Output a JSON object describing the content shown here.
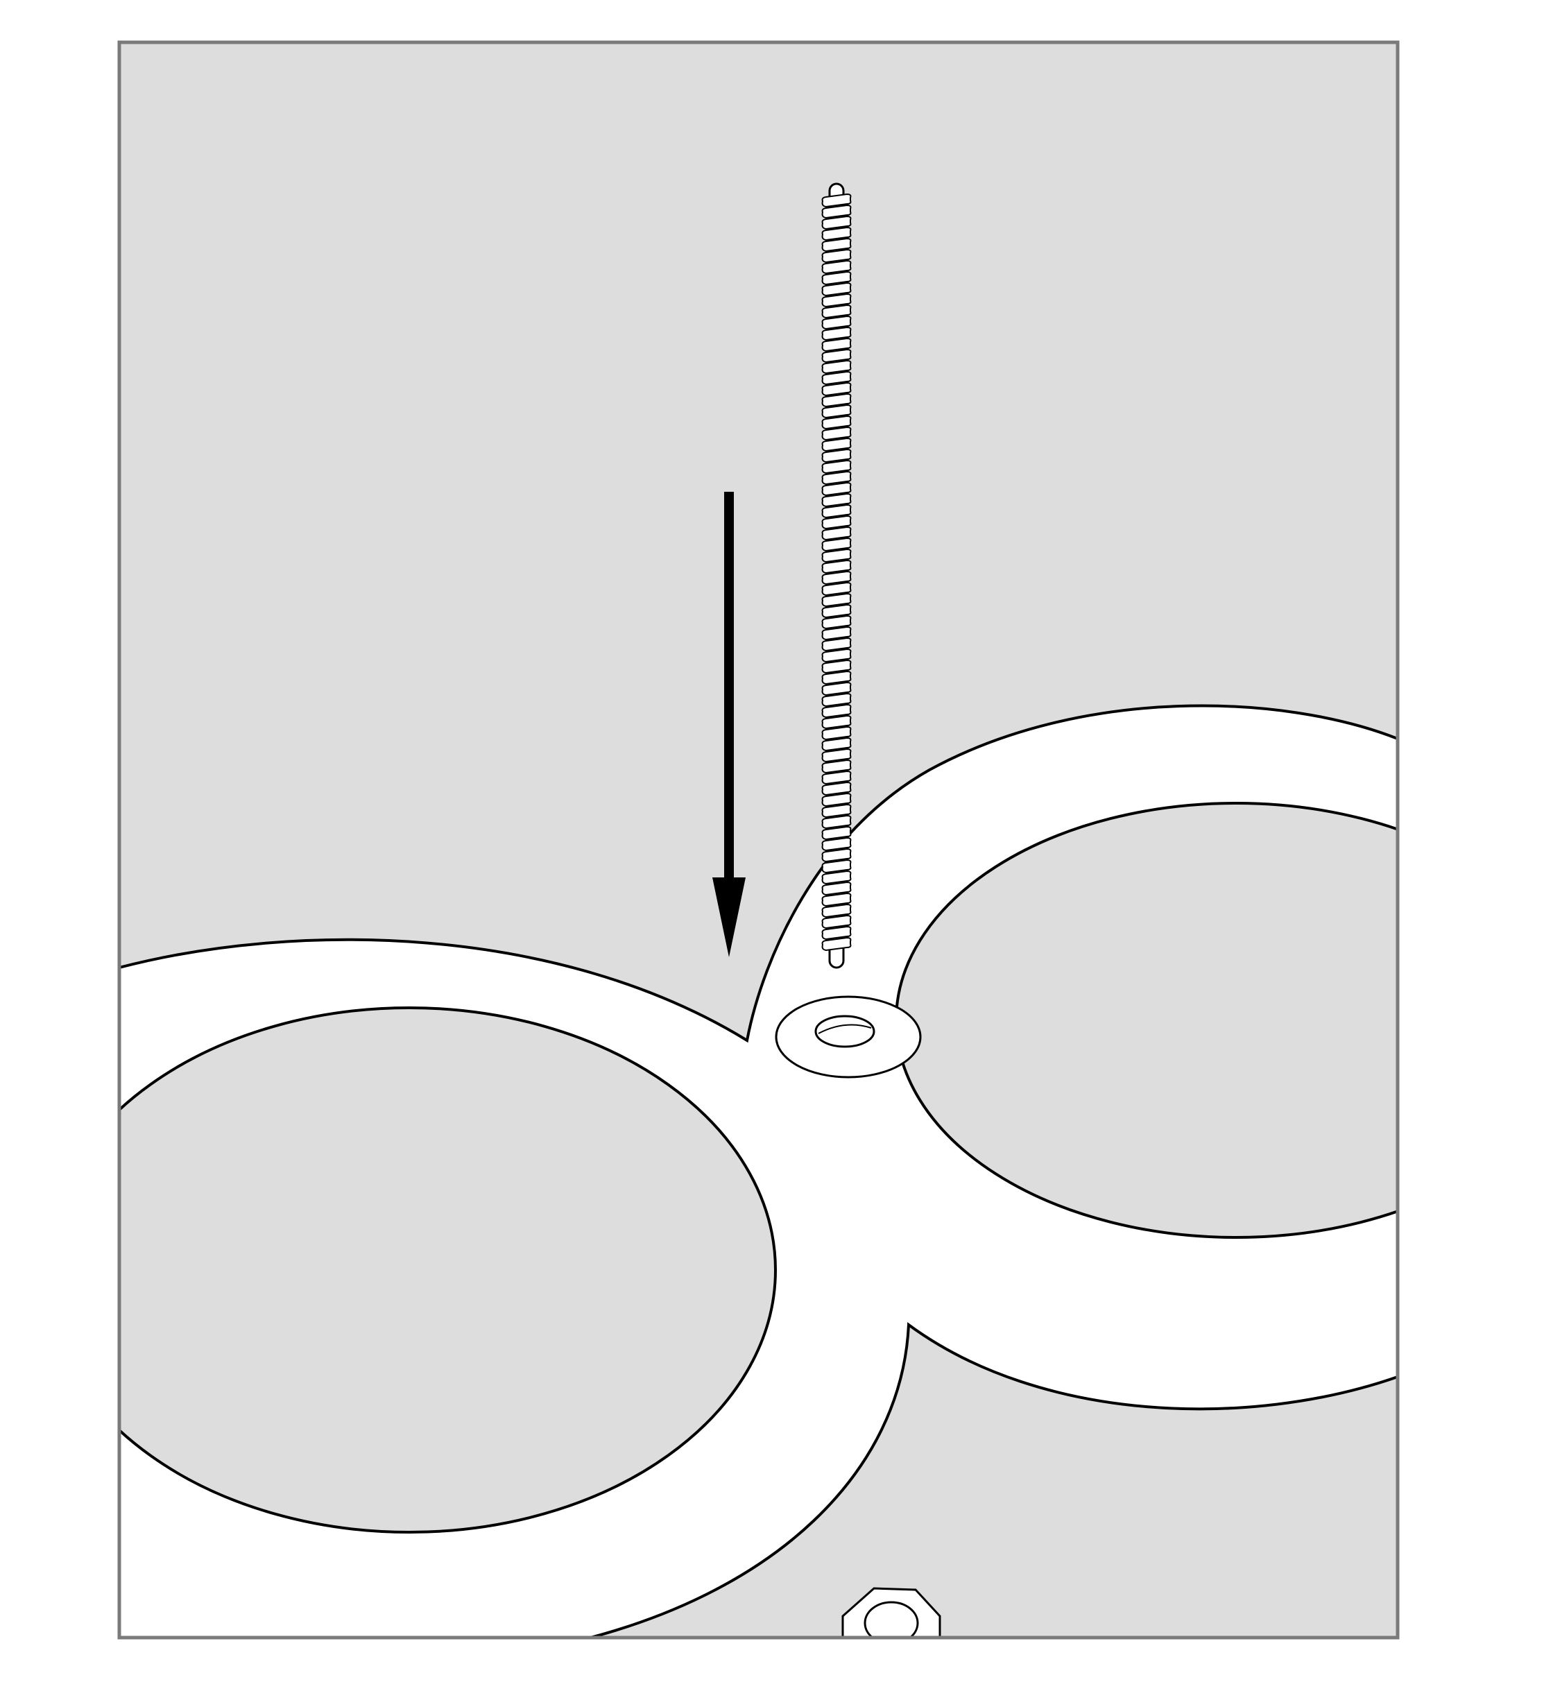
{
  "figure": {
    "description_role": "assembly-illustration",
    "colors": {
      "panel_background": "#dcdddc",
      "panel_border": "#7a7a7a",
      "part_fill": "#ffffff",
      "outline": "#000000",
      "arrow": "#000000"
    },
    "parts": [
      {
        "id": "threaded-rod",
        "icon": "threaded-rod-icon"
      },
      {
        "id": "washer",
        "icon": "washer-icon"
      },
      {
        "id": "hex-nut",
        "icon": "hex-nut-icon"
      },
      {
        "id": "ring-frame",
        "icon": "ring-frame-icon"
      }
    ],
    "arrow_direction": "down"
  }
}
